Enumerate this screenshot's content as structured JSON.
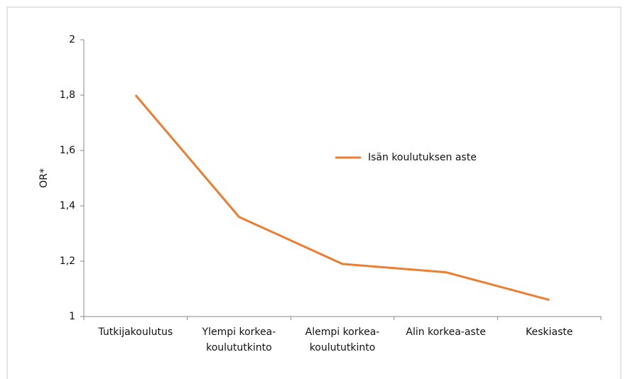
{
  "chart_data": {
    "type": "line",
    "y_label": "OR*",
    "categories": [
      "Tutkijakoulutus",
      "Ylempi korkea-\nkoulututkinto",
      "Alempi korkea-\nkoulututkinto",
      "Alin korkea-aste",
      "Keskiaste"
    ],
    "series": [
      {
        "name": "Isän koulutuksen aste",
        "color": "#ed7d31",
        "values": [
          1.8,
          1.36,
          1.19,
          1.16,
          1.06
        ]
      }
    ],
    "ylim": [
      1,
      2
    ],
    "yticks": [
      1,
      {
        "value": 1.2,
        "label": "1,2"
      },
      {
        "value": 1.4,
        "label": "1,4"
      },
      {
        "value": 1.6,
        "label": "1,6"
      },
      {
        "value": 1.8,
        "label": "1,8"
      },
      2
    ],
    "grid": false
  }
}
